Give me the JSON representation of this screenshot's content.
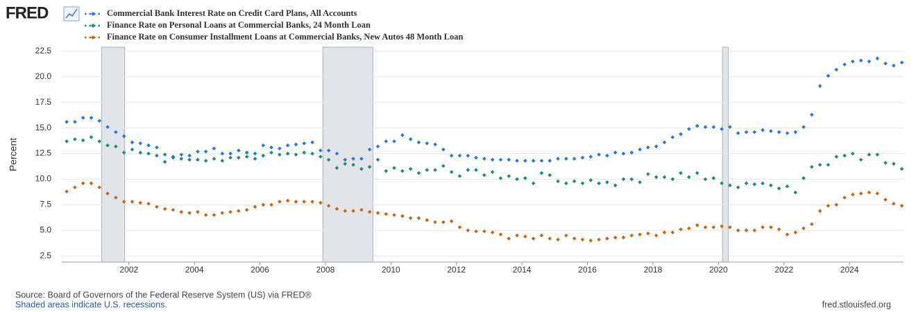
{
  "chart_data": {
    "type": "scatter",
    "logo": "FRED",
    "ylabel": "Percent",
    "source": "Source: Board of Governors of the Federal Reserve System (US) via FRED®",
    "note": "Shaded areas indicate U.S. recessions.",
    "url": "fred.stlouisfed.org",
    "xlim": [
      1999.95,
      2025.65
    ],
    "ylim": [
      1.9,
      22.9
    ],
    "xticks": [
      2002,
      2004,
      2006,
      2008,
      2010,
      2012,
      2014,
      2016,
      2018,
      2020,
      2022,
      2024
    ],
    "yticks": [
      2.5,
      {
        "value": 5,
        "label": "5.0"
      },
      7.5,
      {
        "value": 10,
        "label": "10.0"
      },
      12.5,
      {
        "value": 15,
        "label": "15.0"
      },
      17.5,
      {
        "value": 20,
        "label": "20.0"
      },
      22.5
    ],
    "grid": true,
    "recessions": [
      [
        2001.17,
        2001.87
      ],
      [
        2007.92,
        2009.45
      ],
      [
        2020.12,
        2020.3
      ]
    ],
    "x": [
      2000.1,
      2000.35,
      2000.6,
      2000.85,
      2001.1,
      2001.35,
      2001.6,
      2001.85,
      2002.1,
      2002.35,
      2002.6,
      2002.85,
      2003.1,
      2003.35,
      2003.6,
      2003.85,
      2004.1,
      2004.35,
      2004.6,
      2004.85,
      2005.1,
      2005.35,
      2005.6,
      2005.85,
      2006.1,
      2006.35,
      2006.6,
      2006.85,
      2007.1,
      2007.35,
      2007.6,
      2007.85,
      2008.1,
      2008.35,
      2008.6,
      2008.85,
      2009.1,
      2009.35,
      2009.6,
      2009.85,
      2010.1,
      2010.35,
      2010.6,
      2010.85,
      2011.1,
      2011.35,
      2011.6,
      2011.85,
      2012.1,
      2012.35,
      2012.6,
      2012.85,
      2013.1,
      2013.35,
      2013.6,
      2013.85,
      2014.1,
      2014.35,
      2014.6,
      2014.85,
      2015.1,
      2015.35,
      2015.6,
      2015.85,
      2016.1,
      2016.35,
      2016.6,
      2016.85,
      2017.1,
      2017.35,
      2017.6,
      2017.85,
      2018.1,
      2018.35,
      2018.6,
      2018.85,
      2019.1,
      2019.35,
      2019.6,
      2019.85,
      2020.1,
      2020.35,
      2020.6,
      2020.85,
      2021.1,
      2021.35,
      2021.6,
      2021.85,
      2022.1,
      2022.35,
      2022.6,
      2022.85,
      2023.1,
      2023.35,
      2023.6,
      2023.85,
      2024.1,
      2024.35,
      2024.6,
      2024.85,
      2025.1,
      2025.35,
      2025.6
    ],
    "series": [
      {
        "name": "Commercial Bank Interest Rate on Credit Card Plans, All Accounts",
        "color": "#1f77e6",
        "values": [
          15.6,
          15.6,
          16.0,
          16.0,
          15.7,
          15.1,
          14.6,
          14.2,
          13.6,
          13.5,
          13.3,
          13.1,
          12.4,
          12.2,
          12.4,
          12.3,
          12.7,
          12.7,
          13.0,
          12.5,
          12.5,
          12.8,
          12.6,
          12.5,
          13.3,
          13.1,
          13.0,
          13.3,
          13.4,
          13.5,
          13.6,
          12.8,
          12.8,
          12.5,
          11.9,
          12.0,
          12.0,
          12.9,
          13.2,
          13.7,
          13.7,
          14.3,
          13.9,
          13.6,
          13.5,
          13.4,
          12.9,
          12.3,
          12.3,
          12.3,
          12.1,
          12.0,
          11.9,
          11.9,
          11.9,
          11.8,
          11.8,
          11.8,
          11.8,
          11.8,
          12.0,
          12.0,
          12.0,
          12.1,
          12.2,
          12.4,
          12.3,
          12.6,
          12.5,
          12.6,
          12.9,
          13.1,
          13.2,
          13.6,
          14.1,
          14.4,
          14.9,
          15.2,
          15.1,
          15.1,
          14.9,
          15.1,
          14.5,
          14.6,
          14.6,
          14.8,
          14.7,
          14.6,
          14.5,
          14.6,
          15.1,
          16.3,
          19.1,
          20.1,
          20.7,
          21.2,
          21.5,
          21.6,
          21.5,
          21.8,
          21.3,
          21.1,
          21.4
        ]
      },
      {
        "name": "Finance Rate on Personal Loans at Commercial Banks, 24 Month Loan",
        "color": "#1a8a7a",
        "values": [
          13.7,
          13.9,
          13.8,
          14.1,
          13.7,
          13.3,
          13.2,
          12.6,
          12.9,
          12.6,
          12.5,
          12.3,
          11.7,
          12.1,
          12.0,
          11.9,
          11.9,
          11.8,
          12.0,
          11.8,
          12.1,
          12.1,
          12.2,
          12.0,
          12.3,
          12.6,
          12.4,
          12.5,
          12.4,
          12.6,
          12.5,
          12.2,
          11.9,
          11.1,
          11.5,
          11.4,
          11.0,
          11.2,
          11.9,
          10.8,
          11.1,
          10.8,
          11.0,
          10.6,
          10.9,
          10.9,
          11.3,
          10.7,
          10.3,
          10.9,
          10.9,
          10.4,
          10.7,
          10.1,
          10.3,
          10.0,
          10.1,
          9.6,
          10.6,
          10.4,
          9.8,
          9.6,
          9.8,
          9.6,
          9.9,
          9.6,
          9.7,
          9.4,
          10.0,
          10.0,
          9.7,
          10.5,
          10.2,
          10.2,
          10.0,
          10.6,
          10.2,
          10.6,
          10.0,
          10.1,
          9.6,
          9.4,
          9.2,
          9.6,
          9.5,
          9.6,
          9.4,
          9.1,
          9.3,
          8.7,
          10.1,
          11.2,
          11.4,
          11.4,
          12.2,
          12.3,
          12.5,
          11.9,
          12.4,
          12.4,
          11.6,
          11.5,
          11.0
        ]
      },
      {
        "name": "Finance Rate on Consumer Installment Loans at Commercial Banks, New Autos 48 Month Loan",
        "color": "#c9650e",
        "values": [
          8.8,
          9.2,
          9.6,
          9.6,
          9.2,
          8.6,
          8.2,
          7.8,
          7.8,
          7.7,
          7.6,
          7.3,
          7.1,
          7.0,
          6.8,
          6.7,
          6.8,
          6.5,
          6.5,
          6.7,
          6.8,
          6.9,
          7.0,
          7.3,
          7.5,
          7.5,
          7.8,
          7.9,
          7.8,
          7.8,
          7.8,
          7.7,
          7.4,
          7.1,
          6.9,
          6.9,
          7.0,
          6.8,
          6.7,
          6.6,
          6.5,
          6.4,
          6.2,
          6.2,
          6.0,
          5.8,
          5.8,
          5.9,
          5.3,
          5.0,
          4.9,
          4.9,
          4.8,
          4.6,
          4.2,
          4.5,
          4.4,
          4.2,
          4.5,
          4.2,
          4.1,
          4.5,
          4.2,
          4.1,
          4.0,
          4.1,
          4.2,
          4.3,
          4.3,
          4.5,
          4.6,
          4.7,
          4.5,
          4.8,
          4.8,
          5.1,
          5.2,
          5.5,
          5.3,
          5.3,
          5.4,
          5.3,
          5.0,
          5.0,
          5.0,
          5.3,
          5.3,
          5.1,
          4.6,
          4.8,
          5.2,
          5.6,
          6.9,
          7.4,
          7.5,
          8.2,
          8.5,
          8.6,
          8.7,
          8.6,
          8.0,
          7.6,
          7.4
        ]
      }
    ]
  }
}
